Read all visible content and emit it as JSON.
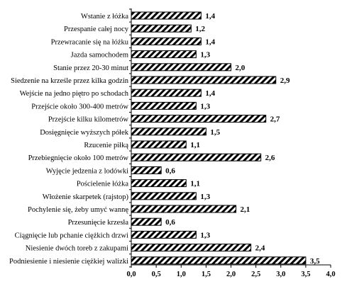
{
  "chart_data": {
    "type": "bar",
    "orientation": "horizontal",
    "categories": [
      "Wstanie z łóżka",
      "Przespanie całej nocy",
      "Przewracanie się na łóżku",
      "Jazda samochodem",
      "Stanie przez 20-30 minut",
      "Siedzenie na krześle przez kilka godzin",
      "Wejście na jedno piętro po schodach",
      "Przejście około 300-400 metrów",
      "Przejście kilku kilometrów",
      "Dosięgnięcie wyższych półek",
      "Rzucenie piłką",
      "Przebiegnięcie około 100 metrów",
      "Wyjęcie jedzenia z lodówki",
      "Pościelenie łóżka",
      "Włożenie skarpetek (rajstop)",
      "Pochylenie się, żeby umyć wannę",
      "Przesunięcie krzesła",
      "Ciągnięcie lub pchanie ciężkich drzwi",
      "Niesienie dwóch toreb z zakupami",
      "Podniesienie i niesienie ciężkiej walizki"
    ],
    "values": [
      1.4,
      1.2,
      1.4,
      1.3,
      2.0,
      2.9,
      1.4,
      1.3,
      2.7,
      1.5,
      1.1,
      2.6,
      0.6,
      1.1,
      1.3,
      2.1,
      0.6,
      1.3,
      2.4,
      3.5
    ],
    "value_labels": [
      "1,4",
      "1,2",
      "1,4",
      "1,3",
      "2,0",
      "2,9",
      "1,4",
      "1,3",
      "2,7",
      "1,5",
      "1,1",
      "2,6",
      "0,6",
      "1,1",
      "1,3",
      "2,1",
      "0,6",
      "1,3",
      "2,4",
      "3,5"
    ],
    "xlim": [
      0,
      4
    ],
    "x_ticks": [
      "0,0",
      "0,5",
      "1,0",
      "1,5",
      "2,0",
      "2,5",
      "3,0",
      "3,5",
      "4,0"
    ],
    "grid": false,
    "bar_fill": "diagonal-hatch",
    "colors": {
      "bar_stroke": "#000000",
      "hatch": "#000000",
      "bar_background": "#ffffff"
    }
  }
}
